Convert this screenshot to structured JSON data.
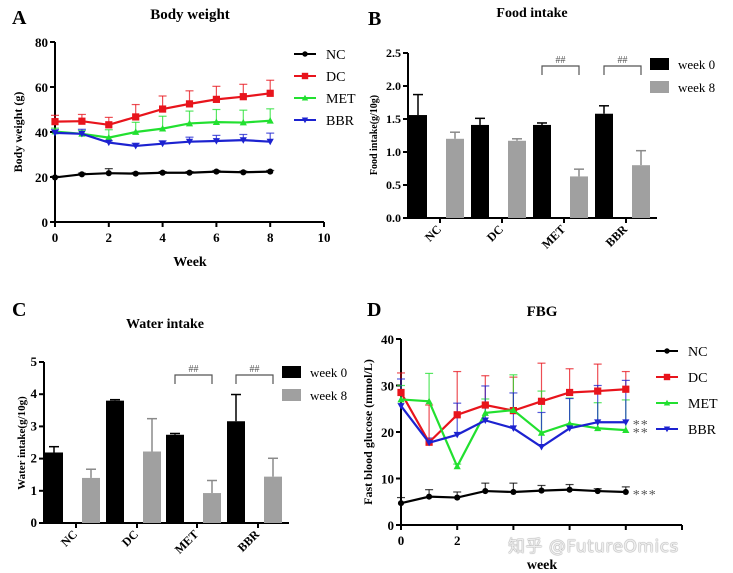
{
  "watermark": "知乎 @FutureOmics",
  "chart_data": [
    {
      "panel": "A",
      "type": "line",
      "title": "Body weight",
      "xlabel": "Week",
      "ylabel": "Body weight (g)",
      "xlim": [
        0,
        10
      ],
      "ylim": [
        0,
        80
      ],
      "xticks": [
        0,
        2,
        4,
        6,
        8,
        10
      ],
      "yticks": [
        0,
        20,
        40,
        60,
        80
      ],
      "grid": false,
      "legend_position": "top-right",
      "x": [
        0,
        1,
        2,
        3,
        4,
        5,
        6,
        7,
        8
      ],
      "series": [
        {
          "name": "NC",
          "color": "#000000",
          "marker": "circle",
          "values": [
            19.8,
            21.2,
            21.7,
            21.5,
            21.9,
            21.9,
            22.4,
            22.1,
            22.4
          ],
          "errors": [
            0.5,
            0.5,
            2.0,
            0.5,
            0.5,
            0.5,
            0.5,
            0.5,
            0.5
          ]
        },
        {
          "name": "DC",
          "color": "#e8141c",
          "marker": "square",
          "values": [
            44.6,
            44.8,
            43.2,
            46.7,
            50.2,
            52.5,
            54.5,
            55.7,
            57.2
          ],
          "errors": [
            2.8,
            3.0,
            3.3,
            5.5,
            5.8,
            5.8,
            5.8,
            5.5,
            5.8
          ]
        },
        {
          "name": "MET",
          "color": "#22e030",
          "marker": "triangle-up",
          "values": [
            40.2,
            39.2,
            37.5,
            40.0,
            41.5,
            43.8,
            44.4,
            44.2,
            45.0
          ],
          "errors": [
            1.5,
            1.5,
            3.5,
            4.3,
            5.5,
            5.5,
            5.6,
            5.5,
            5.3
          ]
        },
        {
          "name": "BBR",
          "color": "#1c22d0",
          "marker": "triangle-down",
          "values": [
            39.6,
            39.2,
            35.3,
            33.8,
            34.8,
            35.7,
            36.0,
            36.4,
            35.7
          ],
          "errors": [
            1.5,
            2.0,
            0.8,
            1.2,
            1.3,
            2.0,
            2.5,
            2.5,
            3.8
          ]
        }
      ]
    },
    {
      "panel": "B",
      "type": "bar",
      "title": "Food intake",
      "xlabel": "",
      "ylabel": "Food intake(g/10g)",
      "ylim": [
        0,
        2.5
      ],
      "yticks": [
        "0.0",
        "0.5",
        "1.0",
        "1.5",
        "2.0",
        "2.5"
      ],
      "categories": [
        "NC",
        "DC",
        "MET",
        "BBR"
      ],
      "legend_position": "top-right",
      "series": [
        {
          "name": "week 0",
          "color": "#000000",
          "values": [
            1.56,
            1.41,
            1.41,
            1.58
          ],
          "errors": [
            0.31,
            0.1,
            0.03,
            0.12
          ]
        },
        {
          "name": "week 8",
          "color": "#a0a0a0",
          "values": [
            1.2,
            1.17,
            0.63,
            0.8
          ],
          "errors": [
            0.1,
            0.03,
            0.11,
            0.22
          ]
        }
      ],
      "annotations": [
        {
          "category": "MET",
          "text": "##"
        },
        {
          "category": "BBR",
          "text": "##"
        }
      ]
    },
    {
      "panel": "C",
      "type": "bar",
      "title": "Water intake",
      "xlabel": "",
      "ylabel": "Water intake(g/10g)",
      "ylim": [
        0,
        5
      ],
      "yticks": [
        "0",
        "1",
        "2",
        "3",
        "4",
        "5"
      ],
      "categories": [
        "NC",
        "DC",
        "MET",
        "BBR"
      ],
      "legend_position": "top-right",
      "series": [
        {
          "name": "week 0",
          "color": "#000000",
          "values": [
            2.19,
            3.8,
            2.74,
            3.16
          ],
          "errors": [
            0.18,
            0.03,
            0.04,
            0.83
          ]
        },
        {
          "name": "week 8",
          "color": "#a0a0a0",
          "values": [
            1.4,
            2.22,
            0.93,
            1.44
          ],
          "errors": [
            0.27,
            1.02,
            0.39,
            0.57
          ]
        }
      ],
      "annotations": [
        {
          "category": "MET",
          "text": "##"
        },
        {
          "category": "BBR",
          "text": "##"
        }
      ]
    },
    {
      "panel": "D",
      "type": "line",
      "title": "FBG",
      "xlabel": "week",
      "ylabel": "Fast blood glucose (mmol/L)",
      "xlim": [
        0,
        10
      ],
      "ylim": [
        0,
        40
      ],
      "xticks": [
        0,
        2,
        4,
        6,
        8,
        10
      ],
      "xtick_labels_visible": [
        "0",
        "2"
      ],
      "yticks": [
        0,
        10,
        20,
        30,
        40
      ],
      "grid": false,
      "legend_position": "top-right",
      "x": [
        0,
        1,
        2,
        3,
        4,
        5,
        6,
        7,
        8
      ],
      "series": [
        {
          "name": "NC",
          "color": "#000000",
          "marker": "circle",
          "values": [
            4.7,
            6.1,
            5.9,
            7.3,
            7.1,
            7.4,
            7.6,
            7.3,
            7.1
          ],
          "errors": [
            1.2,
            1.5,
            1.2,
            1.7,
            1.9,
            1.1,
            1.1,
            0.5,
            1.1
          ],
          "significance": "***"
        },
        {
          "name": "DC",
          "color": "#e8141c",
          "marker": "square",
          "values": [
            28.5,
            17.8,
            23.7,
            25.8,
            24.6,
            26.6,
            28.5,
            28.8,
            29.2
          ],
          "errors": [
            4.2,
            8.0,
            9.3,
            6.3,
            7.2,
            8.2,
            5.1,
            5.8,
            3.8
          ]
        },
        {
          "name": "MET",
          "color": "#22e030",
          "marker": "triangle-up",
          "values": [
            27.0,
            26.6,
            12.6,
            24.1,
            24.7,
            19.8,
            21.8,
            20.8,
            20.4
          ],
          "errors": [
            3.0,
            6.0,
            0.5,
            3.0,
            7.6,
            9.0,
            5.5,
            5.5,
            6.5
          ],
          "significance": "**"
        },
        {
          "name": "BBR",
          "color": "#1c22d0",
          "marker": "triangle-down",
          "values": [
            25.6,
            17.7,
            19.4,
            22.5,
            20.8,
            16.8,
            20.8,
            22.1,
            22.1
          ],
          "errors": [
            5.8,
            1.0,
            6.8,
            7.4,
            7.6,
            7.4,
            6.4,
            7.9,
            9.0
          ],
          "significance": "**"
        }
      ]
    }
  ]
}
